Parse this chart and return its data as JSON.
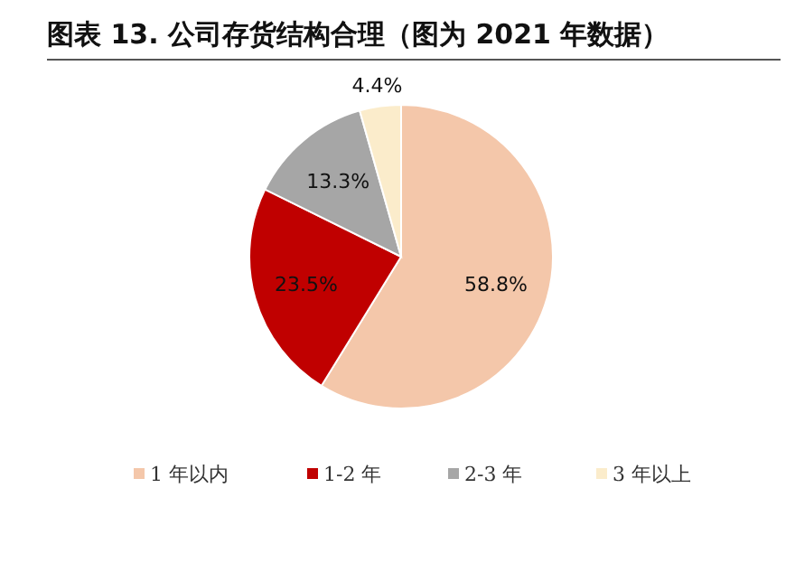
{
  "chart_data": {
    "type": "pie",
    "title": "图表 13. 公司存货结构合理（图为 2021 年数据）",
    "categories": [
      "1 年以内",
      "1-2 年",
      "2-3 年",
      "3 年以上"
    ],
    "values": [
      58.8,
      23.5,
      13.3,
      4.4
    ],
    "value_labels": [
      "58.8%",
      "23.5%",
      "13.3%",
      "4.4%"
    ],
    "colors": [
      "#f4c7aa",
      "#c00000",
      "#a6a6a6",
      "#fbeccb"
    ],
    "legend": "bottom"
  }
}
